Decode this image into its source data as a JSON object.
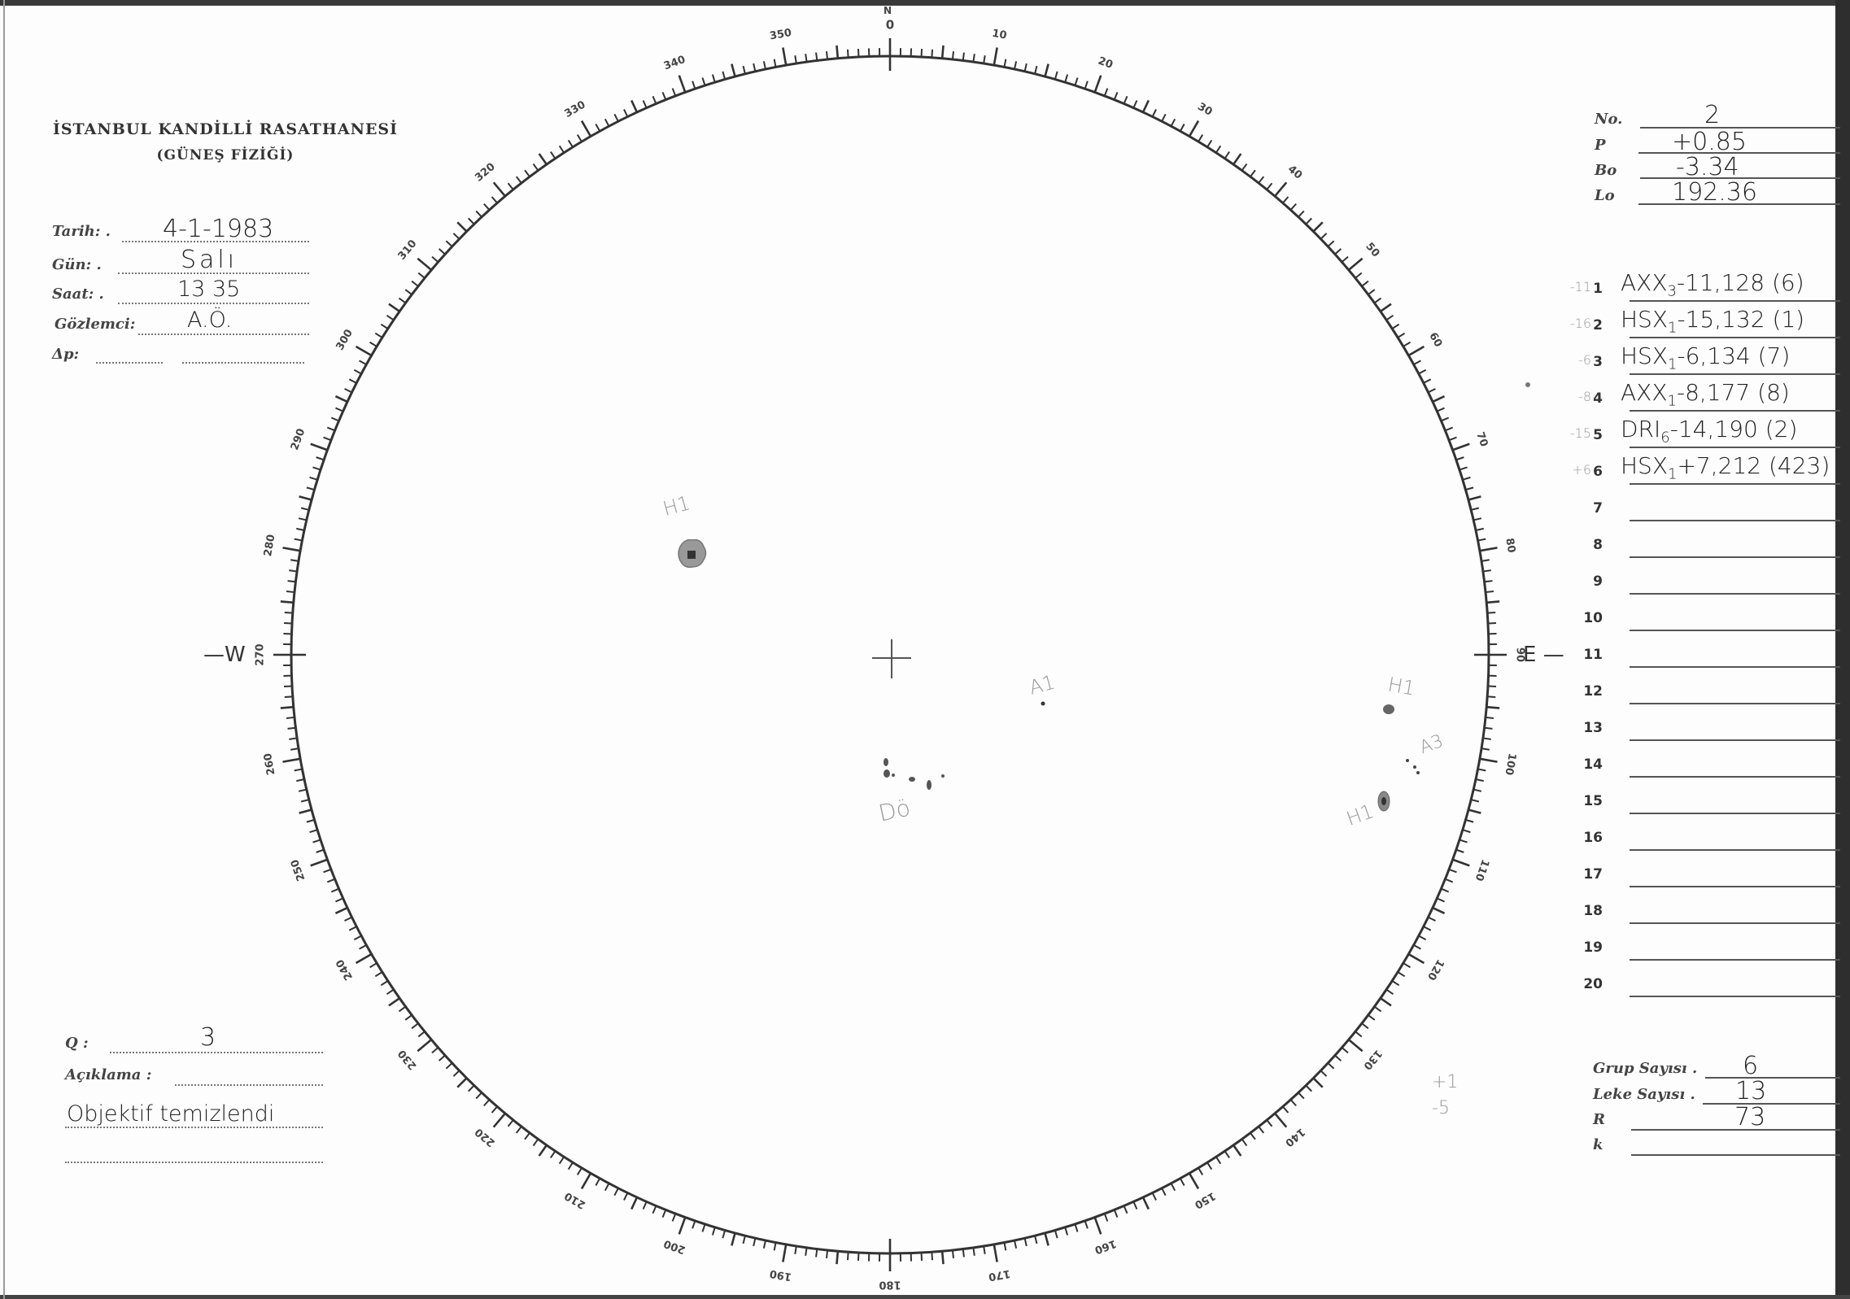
{
  "header": {
    "title": "İSTANBUL KANDİLLİ RASATHANESİ",
    "subtitle": "(GÜNEŞ FİZİĞİ)"
  },
  "observation": {
    "tarih_label": "Tarih: .",
    "tarih": "4-1-1983",
    "gun_label": "Gün: .",
    "gun": "Salı",
    "saat_label": "Saat: .",
    "saat": "13 35",
    "gozlemci_label": "Gözlemci:",
    "gozlemci": "A.Ö.",
    "dp_label": "Δp:",
    "dp": ""
  },
  "ephemeris": {
    "no_label": "No.",
    "no": "2",
    "p_label": "P",
    "p": "+0.85",
    "bo_label": "Bo",
    "bo": "-3.34",
    "lo_label": "Lo",
    "lo": "192.36"
  },
  "groups": [
    {
      "n": "1",
      "note": "-11",
      "cls": "AXX",
      "sub": "3",
      "data": "-11,128 (6)"
    },
    {
      "n": "2",
      "note": "-16",
      "cls": "HSX",
      "sub": "1",
      "data": "-15,132 (1)"
    },
    {
      "n": "3",
      "note": "-6",
      "cls": "HSX",
      "sub": "1",
      "data": "-6,134 (7)"
    },
    {
      "n": "4",
      "note": "-8",
      "cls": "AXX",
      "sub": "1",
      "data": "-8,177 (8)"
    },
    {
      "n": "5",
      "note": "-15",
      "cls": "DRI",
      "sub": "6",
      "data": "-14,190 (2)"
    },
    {
      "n": "6",
      "note": "+6",
      "cls": "HSX",
      "sub": "1",
      "data": "+7,212 (423)"
    },
    {
      "n": "7"
    },
    {
      "n": "8"
    },
    {
      "n": "9"
    },
    {
      "n": "10"
    },
    {
      "n": "11"
    },
    {
      "n": "12"
    },
    {
      "n": "13"
    },
    {
      "n": "14"
    },
    {
      "n": "15"
    },
    {
      "n": "16"
    },
    {
      "n": "17"
    },
    {
      "n": "18"
    },
    {
      "n": "19"
    },
    {
      "n": "20"
    }
  ],
  "summary": {
    "grup_label": "Grup Sayısı .",
    "grup": "6",
    "leke_label": "Leke Sayısı .",
    "leke": "13",
    "r_label": "R",
    "r": "73",
    "k_label": "k",
    "k": ""
  },
  "remarks": {
    "q_label": "Q :",
    "q": "3",
    "aciklama_label": "Açıklama :",
    "aciklama": "Objektif temizlendi"
  },
  "disk": {
    "north": "N",
    "west": "—W",
    "east": "E —",
    "scale_labels": [
      "0",
      "10",
      "20",
      "30",
      "40",
      "50",
      "60",
      "70",
      "80",
      "90",
      "100",
      "110",
      "120",
      "130",
      "140",
      "150",
      "160",
      "170",
      "180",
      "190",
      "200",
      "210",
      "220",
      "230",
      "240",
      "250",
      "260",
      "270",
      "280",
      "290",
      "300",
      "310",
      "320",
      "330",
      "340",
      "350"
    ],
    "spot_labels": {
      "h1_left": "H1",
      "a1": "A1",
      "do": "Dö",
      "h1_right_upper": "H1",
      "a3": "A3",
      "h1_right_lower": "H1"
    },
    "margin_note": [
      "+1",
      "-5"
    ]
  },
  "colors": {
    "ink": "#222222",
    "pencil": "#999999",
    "scale": "#333333",
    "frame": "#2e2e2e"
  }
}
